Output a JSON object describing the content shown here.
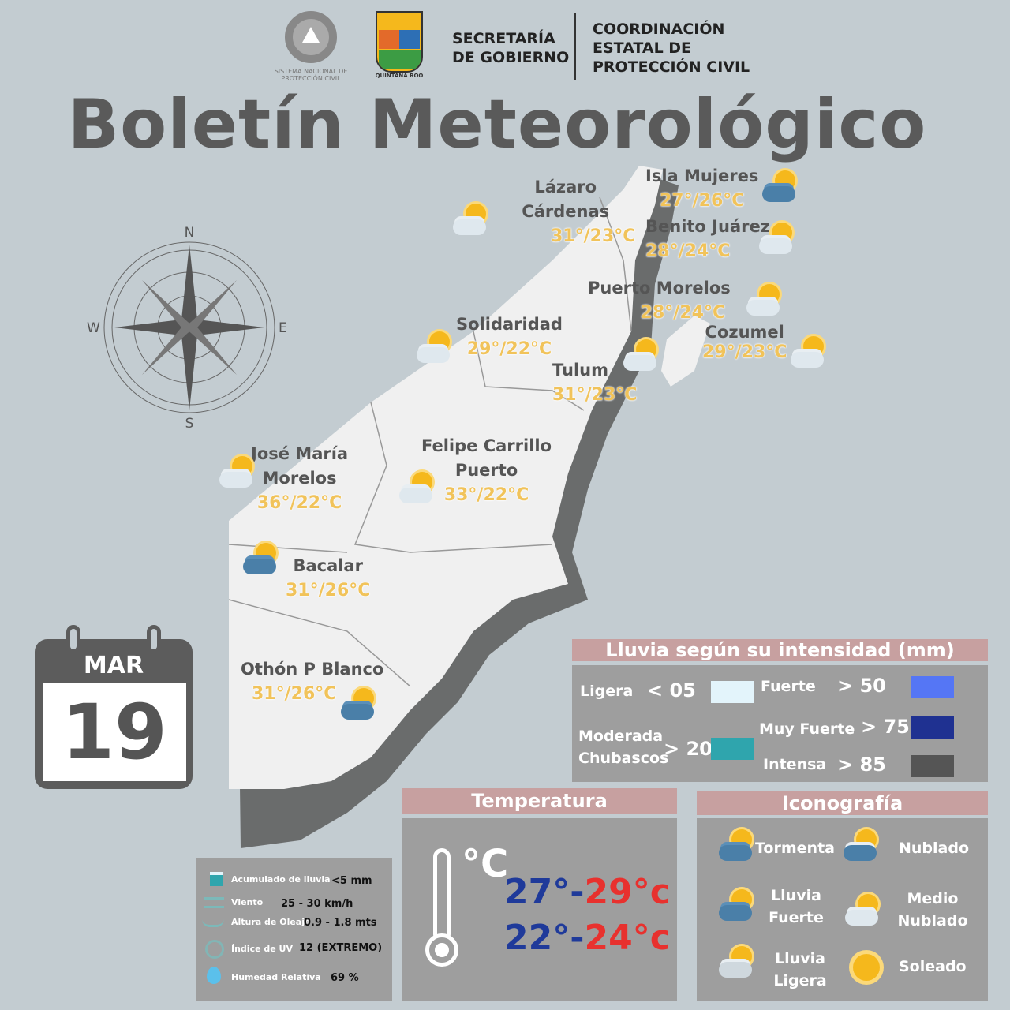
{
  "header": {
    "snpc_logo_text": "SISTEMA NACIONAL DE PROTECCIÓN CIVIL",
    "qroo_logo_text": "QUINTANA ROO",
    "secretaria": [
      "SECRETARÍA",
      "DE GOBIERNO"
    ],
    "coordinacion": [
      "COORDINACIÓN",
      "ESTATAL DE",
      "PROTECCIÓN CIVIL"
    ]
  },
  "title": "Boletín Meteorológico",
  "compass": {
    "n": "N",
    "s": "S",
    "e": "E",
    "w": "W"
  },
  "date": {
    "month": "MAR",
    "day": "19"
  },
  "cities": [
    {
      "name": [
        "Isla Mujeres"
      ],
      "temp": "27°/26°C",
      "icon": "storm"
    },
    {
      "name": [
        "Lázaro",
        "Cárdenas"
      ],
      "temp": "31°/23°C",
      "icon": "partly-cloudy"
    },
    {
      "name": [
        "Benito Juárez"
      ],
      "temp": "28°/24°C",
      "icon": "partly-cloudy"
    },
    {
      "name": [
        "Puerto Morelos"
      ],
      "temp": "28°/24°C",
      "icon": "partly-cloudy"
    },
    {
      "name": [
        "Solidaridad"
      ],
      "temp": "29°/22°C",
      "icon": "partly-cloudy"
    },
    {
      "name": [
        "Cozumel"
      ],
      "temp": "29°/23°C",
      "icon": "partly-cloudy"
    },
    {
      "name": [
        "Tulum"
      ],
      "temp": "31°/23°C",
      "icon": "partly-cloudy"
    },
    {
      "name": [
        "José María",
        "Morelos"
      ],
      "temp": "36°/22°C",
      "icon": "partly-cloudy"
    },
    {
      "name": [
        "Felipe Carrillo",
        "Puerto"
      ],
      "temp": "33°/22°C",
      "icon": "partly-cloudy"
    },
    {
      "name": [
        "Bacalar"
      ],
      "temp": "31°/26°C",
      "icon": "storm"
    },
    {
      "name": [
        "Othón P Blanco"
      ],
      "temp": "31°/26°C",
      "icon": "storm"
    }
  ],
  "rain_legend": {
    "title": "Lluvia según su intensidad (mm)",
    "items": [
      {
        "label": "Ligera",
        "value": "< 05",
        "color": "#e3f4fb"
      },
      {
        "label": "Moderada Chubascos",
        "value": "> 20",
        "color": "#2fa5ad"
      },
      {
        "label": "Fuerte",
        "value": "> 50",
        "color": "#5576f5"
      },
      {
        "label": "Muy Fuerte",
        "value": "> 75",
        "color": "#1f3191"
      },
      {
        "label": "Intensa",
        "value": "> 85",
        "color": "#555555"
      }
    ]
  },
  "info": [
    {
      "label": "Acumulado de lluvia",
      "value": "<5 mm",
      "icon": "rain-gauge-icon"
    },
    {
      "label": "Viento",
      "value": "25 - 30 km/h",
      "icon": "wind-icon"
    },
    {
      "label": "Altura de Oleaje",
      "value": "0.9 - 1.8 mts",
      "icon": "wave-icon"
    },
    {
      "label": "Índice de UV",
      "value": "12 (EXTREMO)",
      "icon": "uv-icon"
    },
    {
      "label": "Humedad Relativa",
      "value": "69 %",
      "icon": "droplet-icon"
    }
  ],
  "temperature": {
    "title": "Temperatura",
    "unit": "°c",
    "rows": [
      {
        "min": "27°",
        "max": "29°c"
      },
      {
        "min": "22°",
        "max": "24°c"
      }
    ],
    "min_color": "#1f3a9a",
    "max_color": "#e8312e"
  },
  "iconography": {
    "title": "Iconografía",
    "items": [
      {
        "label": "Tormenta"
      },
      {
        "label": "Nublado"
      },
      {
        "label": "Lluvia Fuerte"
      },
      {
        "label": "Medio Nublado"
      },
      {
        "label": "Lluvia Ligera"
      },
      {
        "label": "Soleado"
      }
    ]
  }
}
